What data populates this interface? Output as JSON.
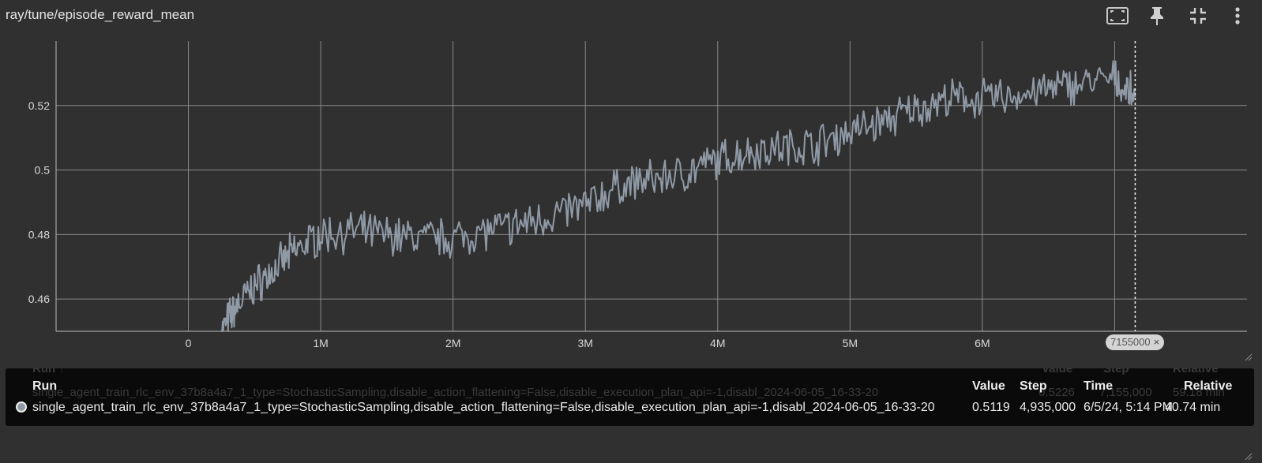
{
  "header": {
    "title": "ray/tune/episode_reward_mean",
    "toolbar": [
      {
        "icon": "fit-to-data-icon"
      },
      {
        "icon": "pin-icon"
      },
      {
        "icon": "collapse-icon"
      },
      {
        "icon": "more-vert-icon"
      }
    ]
  },
  "chart_data": {
    "type": "line",
    "xlim": [
      -1000000,
      8000000
    ],
    "ylim": [
      0.45,
      0.54
    ],
    "x_ticks": [
      0,
      1000000,
      2000000,
      3000000,
      4000000,
      5000000,
      6000000,
      7000000
    ],
    "x_tick_labels": [
      "0",
      "1M",
      "2M",
      "3M",
      "4M",
      "5M",
      "6M",
      "7M"
    ],
    "y_ticks": [
      0.46,
      0.48,
      0.5,
      0.52
    ],
    "y_tick_labels": [
      "0.46",
      "0.48",
      "0.5",
      "0.52"
    ],
    "grid": true,
    "line_color": "#8f9aa6",
    "series": [
      {
        "x": [
          250000,
          350000,
          500000,
          650000,
          800000,
          1000000,
          1250000,
          1500000,
          1750000,
          2000000,
          2250000,
          2500000,
          2750000,
          3000000,
          3250000,
          3500000,
          3750000,
          4000000,
          4250000,
          4500000,
          4750000,
          5000000,
          5250000,
          5500000,
          5750000,
          6000000,
          6250000,
          6500000,
          6750000,
          7000000,
          7155000
        ],
        "y": [
          0.45,
          0.457,
          0.464,
          0.469,
          0.475,
          0.48,
          0.481,
          0.48,
          0.479,
          0.479,
          0.481,
          0.483,
          0.486,
          0.489,
          0.495,
          0.497,
          0.499,
          0.503,
          0.506,
          0.507,
          0.508,
          0.512,
          0.515,
          0.519,
          0.522,
          0.522,
          0.523,
          0.525,
          0.527,
          0.528,
          0.5226
        ]
      }
    ],
    "cursor_step": 7155000,
    "cursor_label": "7155000",
    "cursor_close": "×"
  },
  "tooltip": {
    "ghost": {
      "run_header": "Run ↑",
      "value_header": "Value",
      "step_header": "Step",
      "relative_header": "Relative",
      "run": "single_agent_train_rlc_env_37b8a4a7_1_type=StochasticSampling,disable_action_flattening=False,disable_execution_plan_api=-1,disabl_2024-06-05_16-33-20",
      "value": "0.5226",
      "step": "7,155,000",
      "relative": "59.18 min"
    },
    "headers": {
      "run": "Run",
      "value": "Value",
      "step": "Step",
      "time": "Time",
      "relative": "Relative"
    },
    "row": {
      "run": "single_agent_train_rlc_env_37b8a4a7_1_type=StochasticSampling,disable_action_flattening=False,disable_execution_plan_api=-1,disabl_2024-06-05_16-33-20",
      "value": "0.5119",
      "step": "4,935,000",
      "time": "6/5/24, 5:14 PM",
      "relative": "40.74 min"
    }
  }
}
